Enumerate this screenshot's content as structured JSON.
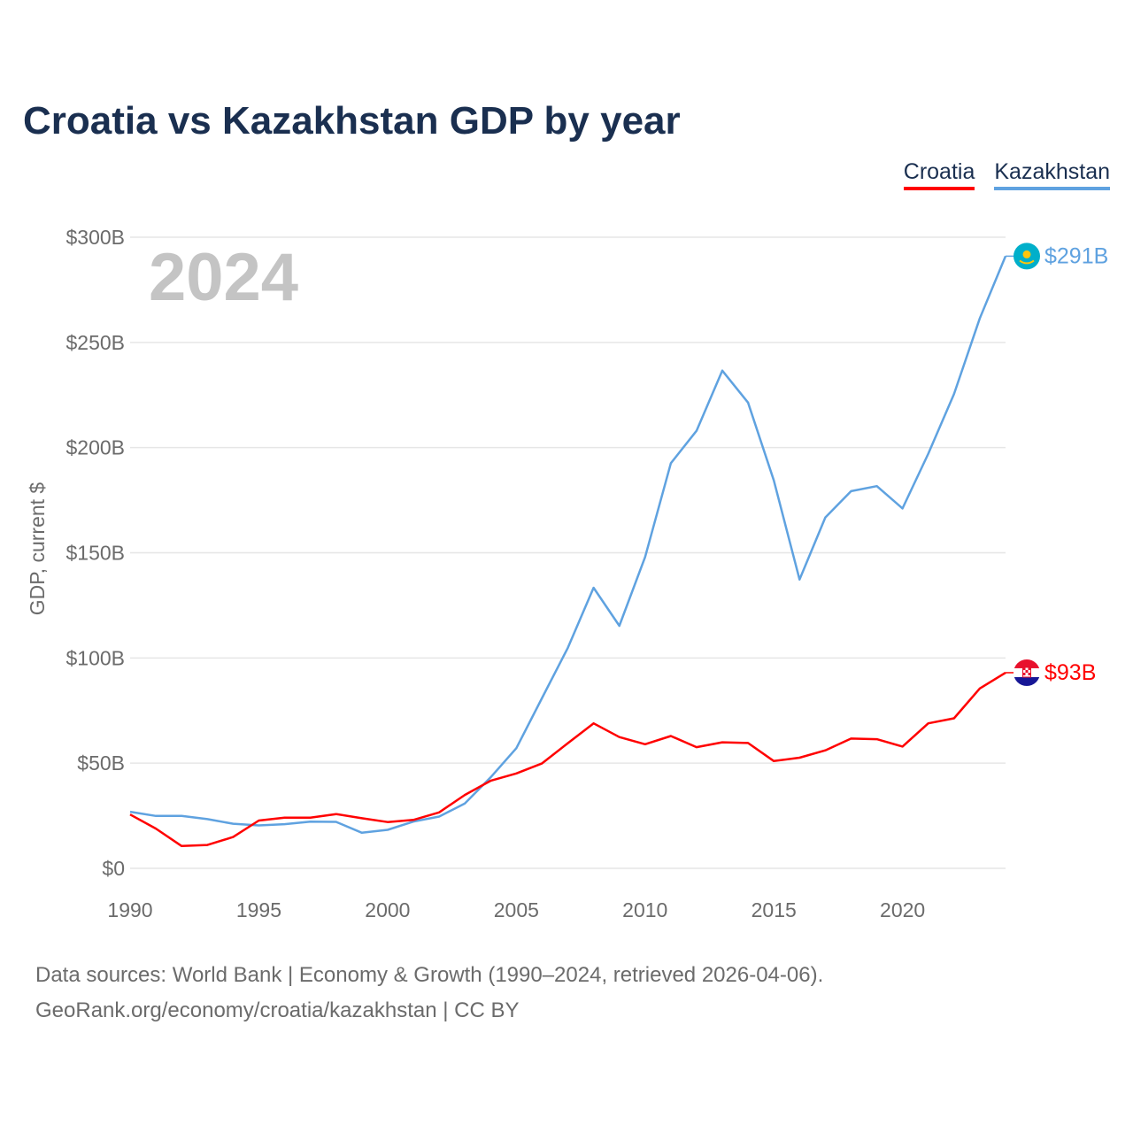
{
  "title": "Croatia vs Kazakhstan GDP by year",
  "legend": {
    "croatia": "Croatia",
    "kazakhstan": "Kazakhstan"
  },
  "footer": {
    "line1": "Data sources: World Bank | Economy & Growth (1990–2024, retrieved 2026-04-06).",
    "line2": "GeoRank.org/economy/croatia/kazakhstan | CC BY"
  },
  "chart_data": {
    "type": "line",
    "title": "Croatia vs Kazakhstan GDP by year",
    "xlabel": "",
    "ylabel": "GDP, current $",
    "year_label": "2024",
    "x": [
      1990,
      1991,
      1992,
      1993,
      1994,
      1995,
      1996,
      1997,
      1998,
      1999,
      2000,
      2001,
      2002,
      2003,
      2004,
      2005,
      2006,
      2007,
      2008,
      2009,
      2010,
      2011,
      2012,
      2013,
      2014,
      2015,
      2016,
      2017,
      2018,
      2019,
      2020,
      2021,
      2022,
      2023,
      2024
    ],
    "xlim": [
      1990,
      2024
    ],
    "ylim": [
      0,
      300
    ],
    "xticks": [
      1990,
      1995,
      2000,
      2005,
      2010,
      2015,
      2020
    ],
    "yticks": [
      0,
      50,
      100,
      150,
      200,
      250,
      300
    ],
    "ytick_labels": [
      "$0",
      "$50B",
      "$100B",
      "$150B",
      "$200B",
      "$250B",
      "$300B"
    ],
    "grid": true,
    "legend_position": "top-right",
    "series": [
      {
        "name": "Croatia",
        "color": "#ff0000",
        "end_label": "$93B",
        "values": [
          25.6,
          18.9,
          10.6,
          11.1,
          14.9,
          22.7,
          24.1,
          24.1,
          25.8,
          23.8,
          22.0,
          23.0,
          26.6,
          34.9,
          41.6,
          45.1,
          49.9,
          59.5,
          68.9,
          62.4,
          59.0,
          62.9,
          57.6,
          59.9,
          59.6,
          51.0,
          52.6,
          56.1,
          61.7,
          61.4,
          57.9,
          68.9,
          71.3,
          85.5,
          93.0
        ]
      },
      {
        "name": "Kazakhstan",
        "color": "#5fa2e0",
        "end_label": "$291B",
        "values": [
          26.9,
          24.9,
          24.9,
          23.4,
          21.2,
          20.4,
          21.0,
          22.2,
          22.1,
          16.9,
          18.3,
          22.2,
          24.6,
          30.8,
          43.2,
          57.1,
          81.0,
          104.8,
          133.4,
          115.3,
          148.0,
          192.6,
          208.0,
          236.6,
          221.4,
          184.4,
          137.3,
          166.8,
          179.3,
          181.7,
          171.1,
          197.1,
          225.5,
          261.4,
          291.0
        ]
      }
    ]
  }
}
